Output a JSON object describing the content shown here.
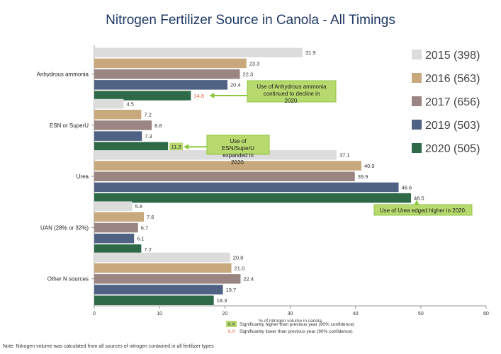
{
  "chart_data": {
    "type": "bar",
    "orientation": "horizontal",
    "title": "Nitrogen Fertilizer Source in Canola - All Timings",
    "xlabel": "% of nitrogen volume in canola",
    "ylabel": "",
    "xlim": [
      0,
      60
    ],
    "xticks": [
      "0",
      "10",
      "20",
      "30",
      "40",
      "50",
      "60"
    ],
    "grid": false,
    "legend_position": "right",
    "categories": [
      "Anhydrous ammonia",
      "ESN or SuperU",
      "Urea",
      "UAN (28% or 32%)",
      "Other N sources"
    ],
    "series": [
      {
        "name": "2015 (398)",
        "color": "#dcdcdc",
        "values": [
          31.9,
          4.5,
          37.1,
          5.8,
          20.8
        ],
        "labels": [
          "31.9",
          "4.5",
          "37.1",
          "5.8",
          "20.8"
        ]
      },
      {
        "name": "2016 (563)",
        "color": "#c8a97e",
        "values": [
          23.3,
          7.2,
          40.9,
          7.6,
          21.0
        ],
        "labels": [
          "23.3",
          "7.2",
          "40.9",
          "7.6",
          "21.0"
        ]
      },
      {
        "name": "2017 (656)",
        "color": "#9a8582",
        "values": [
          22.3,
          8.8,
          39.9,
          6.7,
          22.4
        ],
        "labels": [
          "22.3",
          "8.8",
          "39.9",
          "6.7",
          "22.4"
        ]
      },
      {
        "name": "2019 (503)",
        "color": "#4f6284",
        "values": [
          20.4,
          7.3,
          46.6,
          6.1,
          19.7
        ],
        "labels": [
          "20.4",
          "7.3",
          "46.6",
          "6.1",
          "19.7"
        ]
      },
      {
        "name": "2020 (505)",
        "color": "#2e6a48",
        "values": [
          14.8,
          11.3,
          48.5,
          7.2,
          18.3
        ],
        "labels": [
          "14.8",
          "11.3",
          "48.5",
          "7.2",
          "18.3"
        ]
      }
    ],
    "significance": [
      {
        "category": 0,
        "series": 4,
        "type": "lower"
      },
      {
        "category": 1,
        "series": 4,
        "type": "higher"
      }
    ],
    "annotations": [
      {
        "text": "Use of Anhydrous ammonia continued to decline in 2020.",
        "category": 0,
        "series": 4
      },
      {
        "text": "Use of ESN/SuperU expanded in 2020.",
        "category": 1,
        "series": 4
      },
      {
        "text": "Use of Urea edged higher in 2020.",
        "category": 2,
        "series": 4
      }
    ],
    "sig_legend": [
      {
        "marker": "X.X",
        "text": "Significantly higher than previous year (90% confidence)",
        "color": "#8dc63f"
      },
      {
        "marker": "X.X",
        "text": "Significantly lower than previous year (90% confidence)",
        "color": "#e8623a"
      }
    ],
    "note": "Note: Nitrogen volume was calculated from all sources of nitrogen contained in all fertilizer types"
  },
  "colors": {
    "higher_fill": "#b8d96e",
    "lower_text": "#e8623a",
    "callout_fill": "#b8d96e",
    "callout_border": "#8dc63f",
    "axis": "#999999",
    "title": "#1f3864"
  }
}
